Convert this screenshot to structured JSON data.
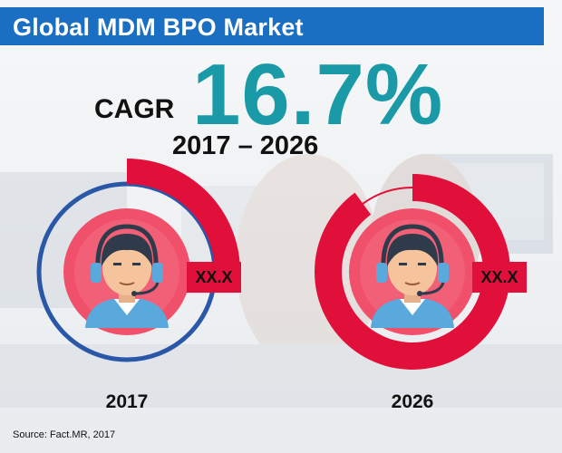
{
  "header": {
    "title": "Global MDM BPO Market"
  },
  "cagr": {
    "label": "CAGR",
    "value": "16.7%",
    "period": "2017 – 2026"
  },
  "colors": {
    "header_blue": "#1b6fc2",
    "cagr_teal": "#1a9aa6",
    "ring_red": "#e0103a",
    "ring_blue": "#2a57a8",
    "avatar_circle": "#f0506a"
  },
  "icons": [
    "headset-agent-icon"
  ],
  "chart_data": {
    "type": "pie",
    "title": "Global MDM BPO Market",
    "categories": [
      "2017",
      "2026"
    ],
    "values_label": [
      "XX.X",
      "XX.X"
    ],
    "series": [
      {
        "year": "2017",
        "value_label": "XX.X",
        "filled_fraction": 0.25
      },
      {
        "year": "2026",
        "value_label": "XX.X",
        "filled_fraction": 0.9
      }
    ]
  },
  "footer": {
    "source": "Source: Fact.MR, 2017"
  }
}
